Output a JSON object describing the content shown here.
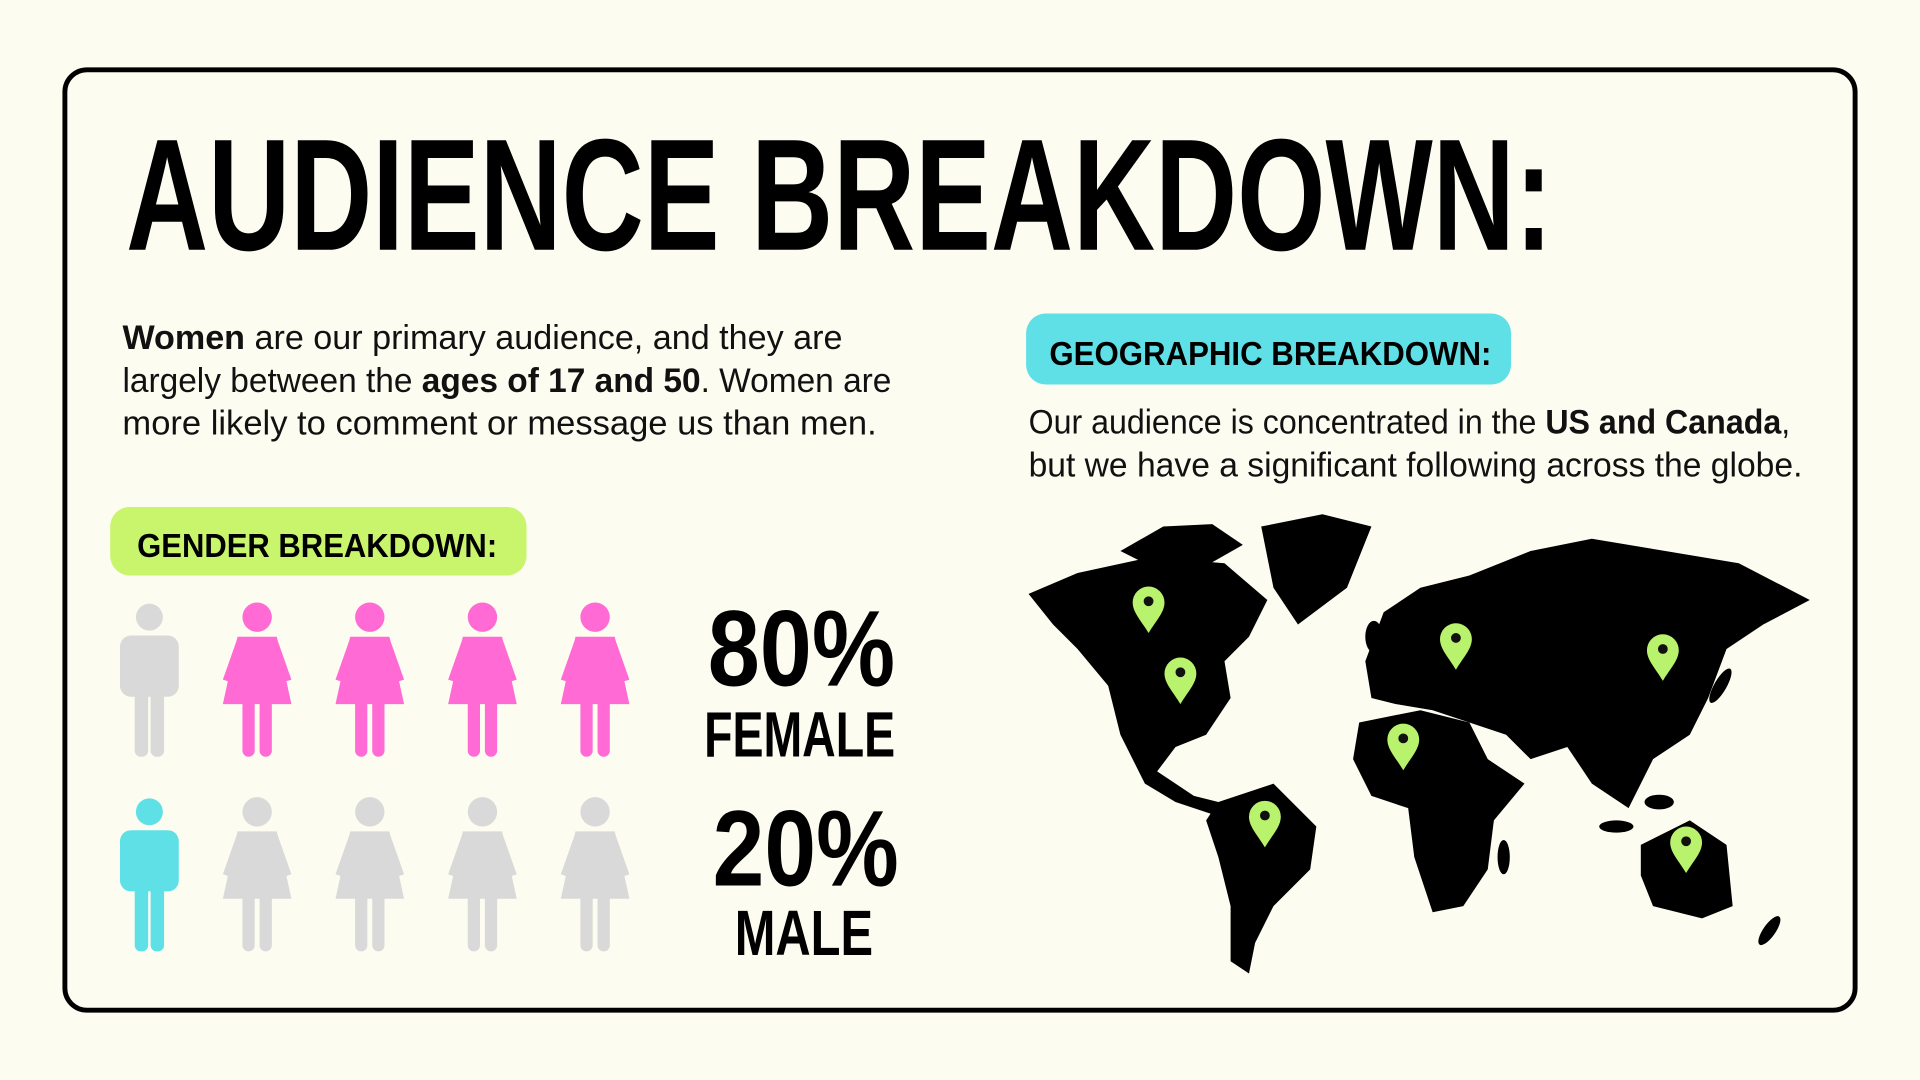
{
  "header": {
    "title": "AUDIENCE BREAKDOWN:"
  },
  "intro": {
    "lines": [
      [
        {
          "text": "Women",
          "bold": true
        },
        {
          "text": " are our primary audience, and they are"
        }
      ],
      [
        {
          "text": "largely between the "
        },
        {
          "text": "ages of 17 and 50",
          "bold": true
        },
        {
          "text": ". Women are"
        }
      ],
      [
        {
          "text": "more likely to comment or message us than men."
        }
      ]
    ]
  },
  "gender": {
    "label": "GENDER BREAKDOWN:",
    "rows": [
      {
        "name": "FEMALE",
        "share": {
          "value": 80,
          "label": "80%"
        },
        "color": "#ff6ad5"
      },
      {
        "name": "MALE",
        "share": {
          "value": 20,
          "label": "20%"
        },
        "color": "#5ee0e6"
      }
    ]
  },
  "geography": {
    "label": "GEOGRAPHIC BREAKDOWN:",
    "lines": [
      [
        {
          "text": "Our audience is concentrated in the "
        },
        {
          "text": "US and Canada",
          "bold": true
        },
        {
          "text": ","
        }
      ],
      [
        {
          "text": "but we have a significant following across the globe."
        }
      ]
    ]
  }
}
